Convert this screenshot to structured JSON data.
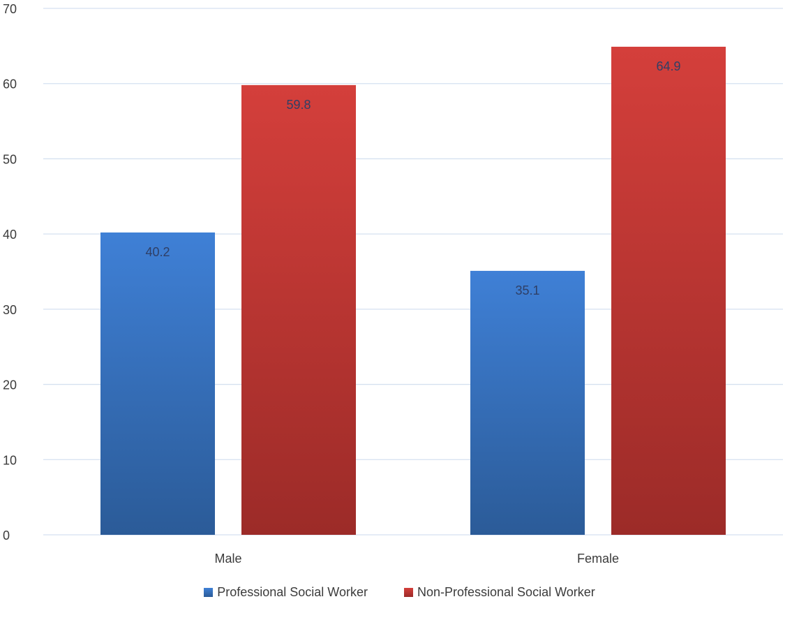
{
  "chart_data": {
    "type": "bar",
    "title": "",
    "xlabel": "",
    "ylabel": "",
    "categories": [
      "Male",
      "Female"
    ],
    "series": [
      {
        "name": "Professional Social Worker",
        "values": [
          40.2,
          35.1
        ],
        "value_labels": [
          "40.2",
          "35.1"
        ],
        "color": "#3a79c9"
      },
      {
        "name": "Non-Professional Social Worker",
        "values": [
          59.8,
          64.9
        ],
        "value_labels": [
          "59.8",
          "64.9"
        ],
        "color": "#c73a37"
      }
    ],
    "ylim": [
      0,
      70
    ],
    "yticks": [
      0,
      10,
      20,
      30,
      40,
      50,
      60,
      70
    ],
    "grid": true,
    "legend_position": "bottom-center",
    "data_label_position": "inside-top"
  }
}
